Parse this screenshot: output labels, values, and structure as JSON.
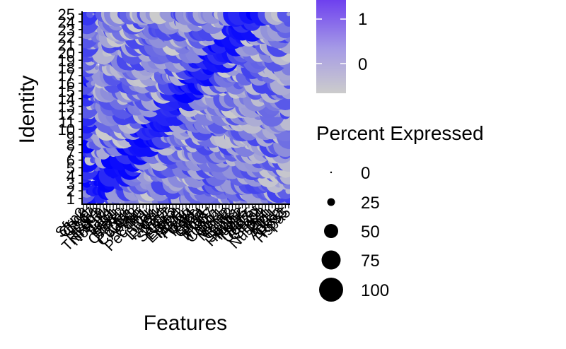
{
  "chart_data": {
    "type": "dotplot",
    "xlabel": "Features",
    "ylabel": "Identity",
    "y_tick_labels": [
      "1",
      "2",
      "3",
      "4",
      "5",
      "6",
      "7",
      "8",
      "9",
      "10",
      "11",
      "12",
      "13",
      "14",
      "15",
      "16",
      "17",
      "18",
      "19",
      "20",
      "21",
      "22",
      "23",
      "24",
      "25"
    ],
    "x_tick_labels": [
      "Sfrp2",
      "Chd8",
      "Cav1",
      "Fzd7",
      "Lgr4",
      "Rspo3",
      "Tnfrsf19",
      "Notch1",
      "Dll4",
      "Jag1",
      "Hey1",
      "Hes1",
      "Cxcl12",
      "Kit",
      "Pdgfra",
      "Col1a1",
      "Acta2",
      "Vim",
      "Cdh5",
      "Pecam1",
      "Kdr",
      "Tek",
      "Lyve1",
      "Prox1",
      "Flt4",
      "Nrp2",
      "Sox17",
      "Gja5",
      "Efnb2",
      "Ephb4",
      "Nr2f2",
      "Aplnr",
      "Plvap",
      "Car4",
      "Rgcc",
      "Ly6a",
      "Cd34",
      "Thy1",
      "Ptprc",
      "Mki67",
      "Top2a",
      "Ccnb1",
      "Cdk1",
      "Pcna",
      "Mcm2",
      "Rrm2",
      "Tyms",
      "Stmn1",
      "Hmgb2",
      "Tubb5",
      "H2afz",
      "Birc5",
      "Ube2c",
      "Cenpf",
      "Smc4",
      "Tpx2",
      "Nusap1",
      "Prc1",
      "Kif11",
      "Aurkb",
      "Cks2",
      "Rps3",
      "Hspa5"
    ],
    "color_legend": {
      "labels": [
        "1",
        "0"
      ],
      "low_color": "#cccccc",
      "high_color": "#0000ff"
    },
    "size_legend": {
      "title": "Percent Expressed",
      "labels": [
        "0",
        "25",
        "50",
        "75",
        "100"
      ]
    },
    "n_rows": 25,
    "n_cols": 63
  }
}
